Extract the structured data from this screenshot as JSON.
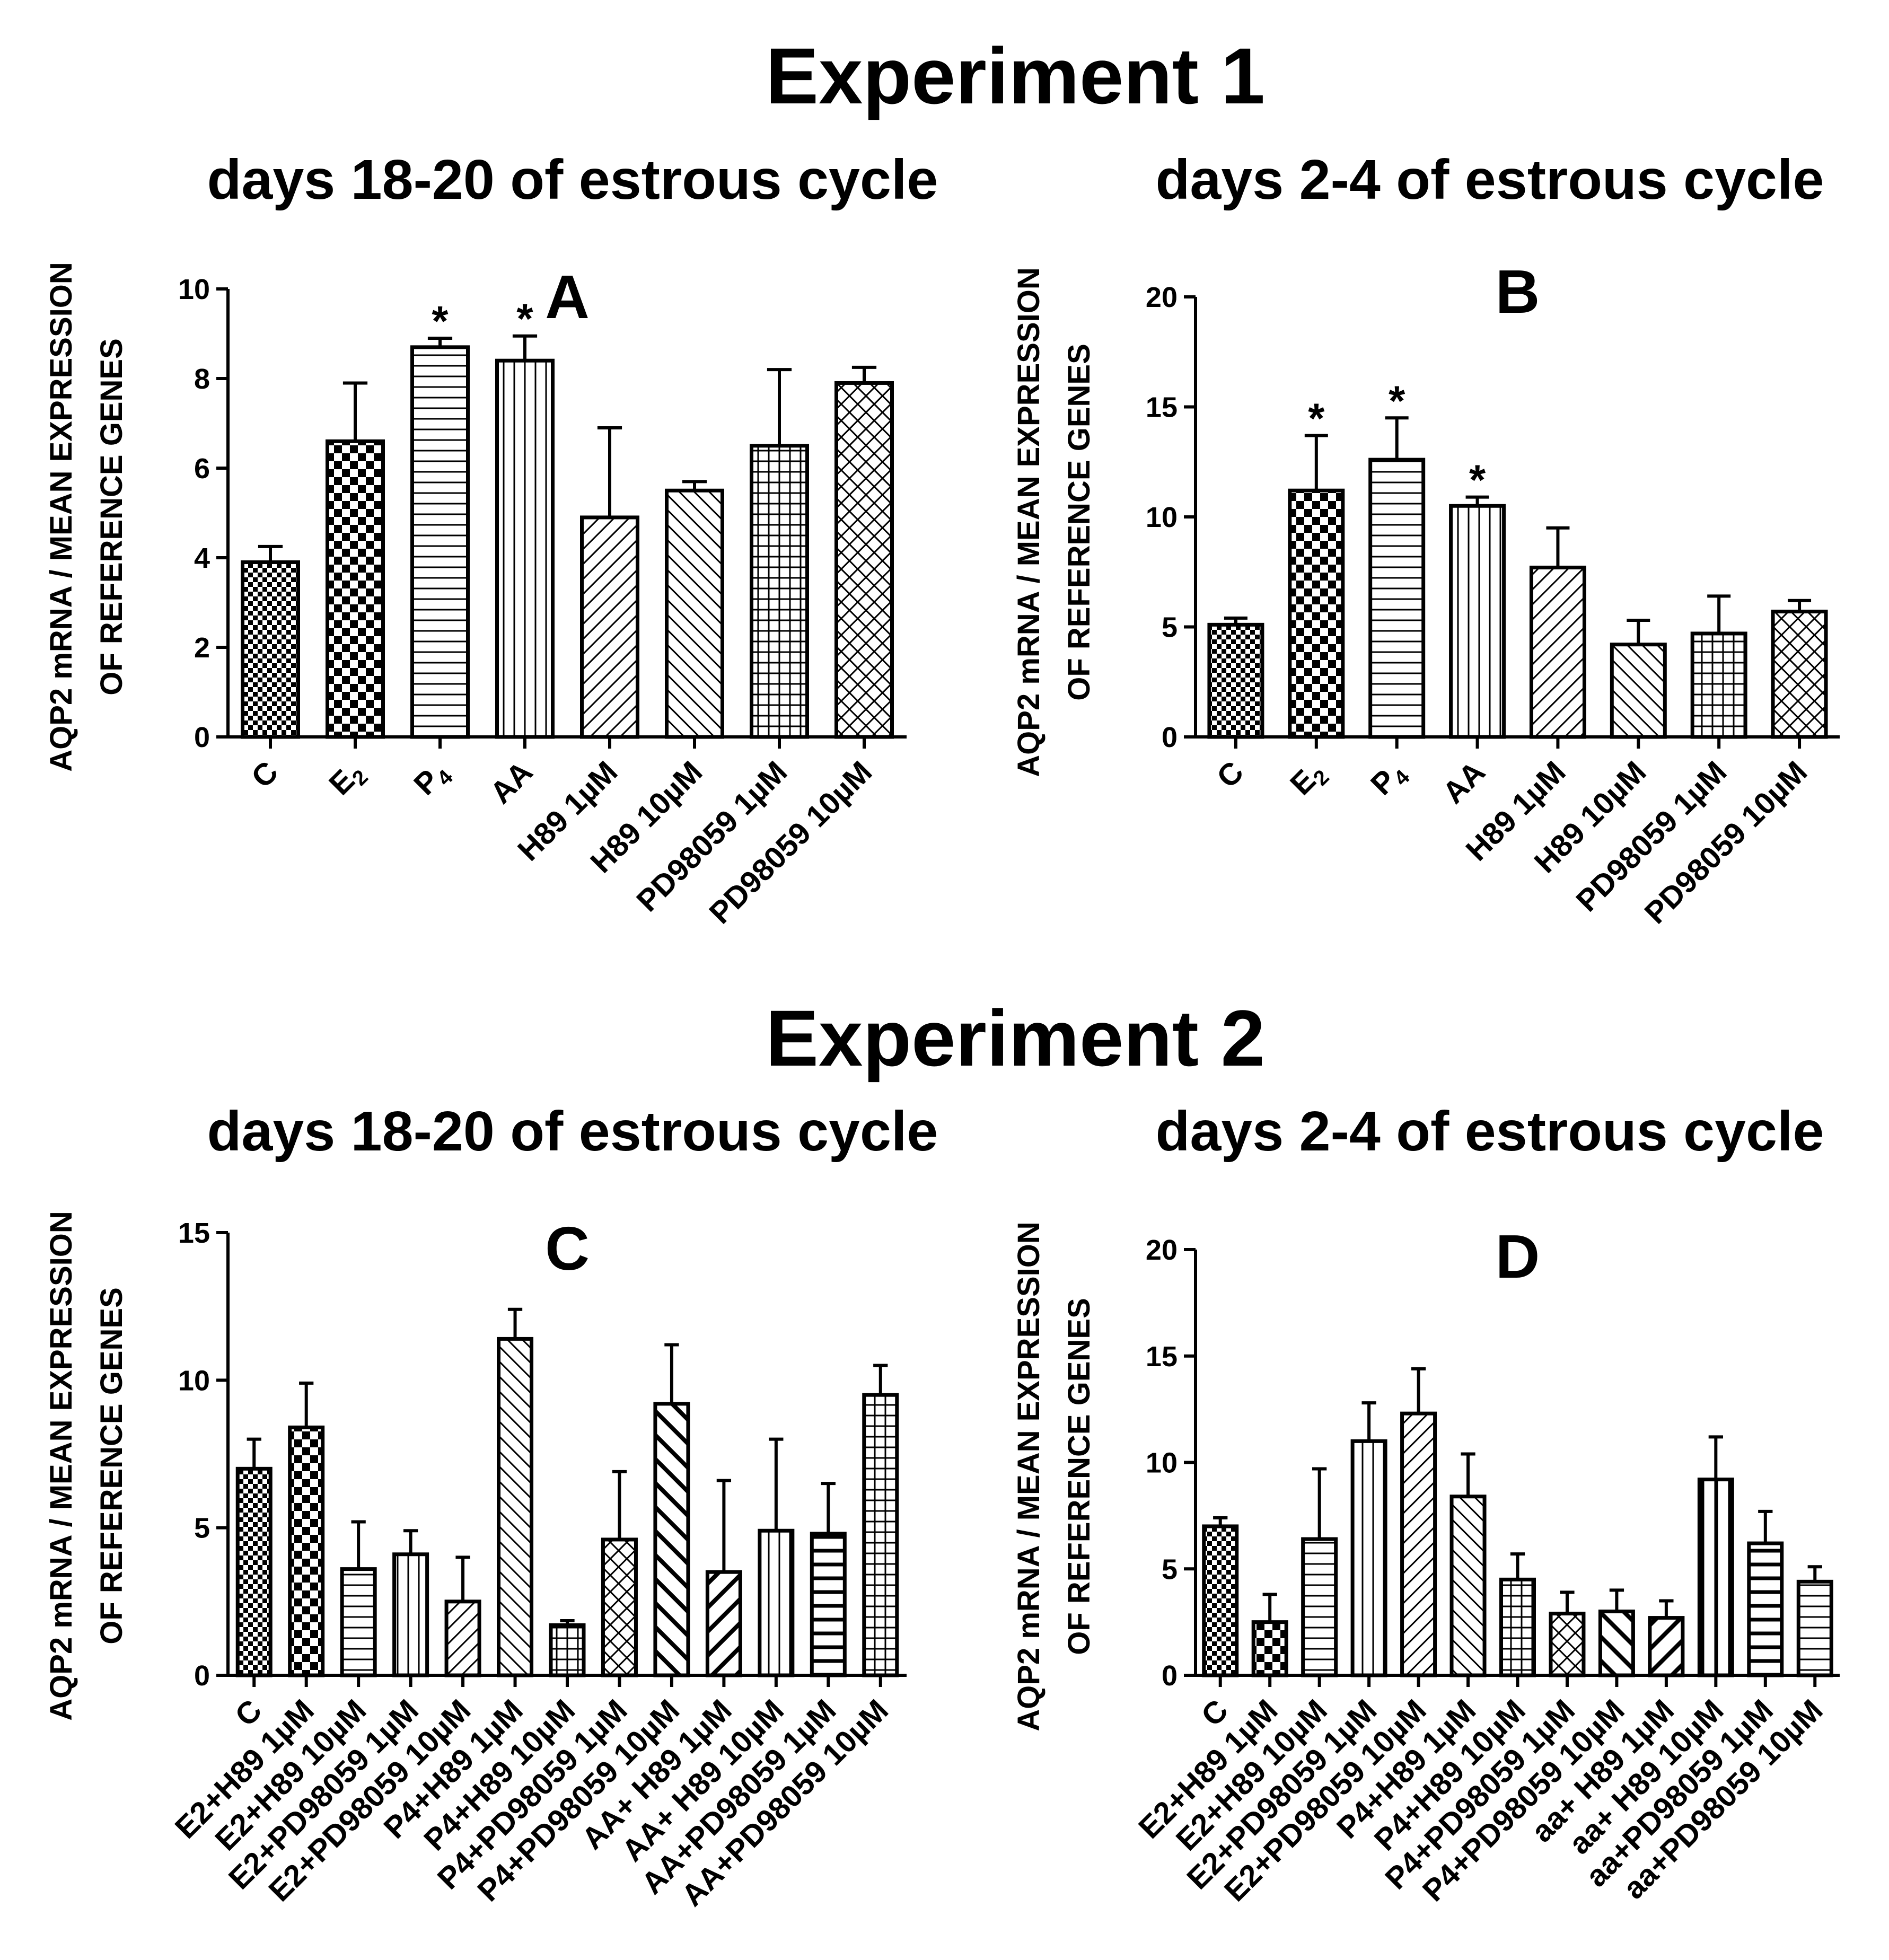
{
  "figure": {
    "experiment1_title": "Experiment 1",
    "experiment2_title": "Experiment 2",
    "subtitle_days_18_20": "days 18-20 of estrous cycle",
    "subtitle_days_2_4": "days 2-4 of estrous cycle",
    "ylabel_line1": "AQP2 mRNA / MEAN EXPRESSION",
    "ylabel_line2": "OF REFERENCE GENES"
  },
  "chart_data": [
    {
      "panel": "A",
      "type": "bar",
      "title": "A",
      "ylim": [
        0,
        10
      ],
      "yticks": [
        0,
        2,
        4,
        6,
        8,
        10
      ],
      "categories": [
        "C",
        "E2",
        "P4",
        "AA",
        "H89 1µM",
        "H89 10µM",
        "PD98059 1µM",
        "PD98059 10µM"
      ],
      "values": [
        3.9,
        6.6,
        8.7,
        8.4,
        4.9,
        5.5,
        6.5,
        7.9
      ],
      "errors": [
        0.35,
        1.3,
        0.2,
        0.55,
        2.0,
        0.2,
        1.7,
        0.35
      ],
      "significant": [
        false,
        false,
        true,
        true,
        false,
        false,
        false,
        false
      ]
    },
    {
      "panel": "B",
      "type": "bar",
      "title": "B",
      "ylim": [
        0,
        20
      ],
      "yticks": [
        0,
        5,
        10,
        15,
        20
      ],
      "categories": [
        "C",
        "E2",
        "P4",
        "AA",
        "H89 1µM",
        "H89 10µM",
        "PD98059 1µM",
        "PD98059 10µM"
      ],
      "values": [
        5.1,
        11.2,
        12.6,
        10.5,
        7.7,
        4.2,
        4.7,
        5.7
      ],
      "errors": [
        0.3,
        2.5,
        1.9,
        0.4,
        1.8,
        1.1,
        1.7,
        0.5
      ],
      "significant": [
        false,
        true,
        true,
        true,
        false,
        false,
        false,
        false
      ]
    },
    {
      "panel": "C",
      "type": "bar",
      "title": "C",
      "ylim": [
        0,
        15
      ],
      "yticks": [
        0,
        5,
        10,
        15
      ],
      "categories": [
        "C",
        "E2+H89 1µM",
        "E2+H89 10µM",
        "E2+PD98059 1µM",
        "E2+PD98059 10µM",
        "P4+H89 1µM",
        "P4+H89 10µM",
        "P4+PD98059 1µM",
        "P4+PD98059 10µM",
        "AA+ H89 1µM",
        "AA+ H89 10µM",
        "AA+PD98059 1µM",
        "AA+PD98059 10µM"
      ],
      "values": [
        7.0,
        8.4,
        3.6,
        4.1,
        2.5,
        11.4,
        1.7,
        4.6,
        9.2,
        3.5,
        4.9,
        4.8,
        9.5
      ],
      "errors": [
        1.0,
        1.5,
        1.6,
        0.8,
        1.5,
        1.0,
        0.15,
        2.3,
        2.0,
        3.1,
        3.1,
        1.7,
        1.0
      ],
      "significant": [
        false,
        false,
        false,
        false,
        false,
        false,
        false,
        false,
        false,
        false,
        false,
        false,
        false
      ]
    },
    {
      "panel": "D",
      "type": "bar",
      "title": "D",
      "ylim": [
        0,
        20
      ],
      "yticks": [
        0,
        5,
        10,
        15,
        20
      ],
      "categories": [
        "C",
        "E2+H89 1µM",
        "E2+H89 10µM",
        "E2+PD98059 1µM",
        "E2+PD98059 10µM",
        "P4+H89 1µM",
        "P4+H89 10µM",
        "P4+PD98059 1µM",
        "P4+PD98059 10µM",
        "aa+ H89 1µM",
        "aa+ H89 10µM",
        "aa+PD98059 1µM",
        "aa+PD98059 10µM"
      ],
      "values": [
        7.0,
        2.5,
        6.4,
        11.0,
        12.3,
        8.4,
        4.5,
        2.9,
        3.0,
        2.7,
        9.2,
        6.2,
        4.4
      ],
      "errors": [
        0.4,
        1.3,
        3.3,
        1.8,
        2.1,
        2.0,
        1.2,
        1.0,
        1.0,
        0.8,
        2.0,
        1.5,
        0.7
      ],
      "significant": [
        false,
        false,
        false,
        false,
        false,
        false,
        false,
        false,
        false,
        false,
        false,
        false,
        false
      ]
    }
  ]
}
